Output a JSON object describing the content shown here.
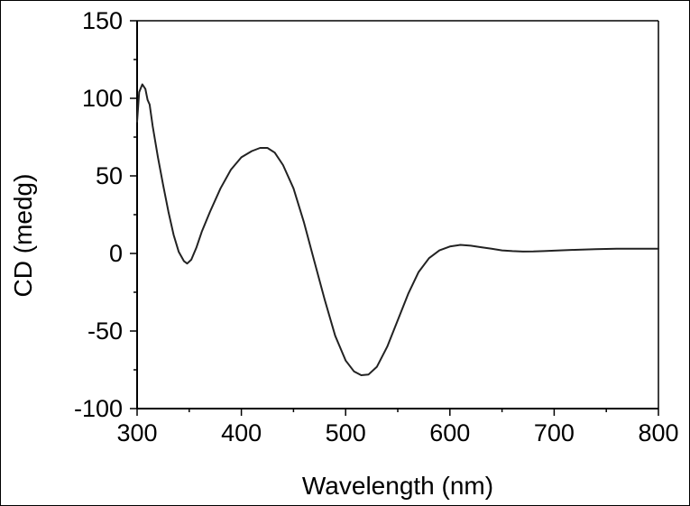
{
  "chart_data": {
    "type": "line",
    "xlabel": "Wavelength (nm)",
    "ylabel": "CD (medg)",
    "xlim": [
      300,
      800
    ],
    "ylim": [
      -100,
      150
    ],
    "xticks": [
      "300",
      "400",
      "500",
      "600",
      "700",
      "800"
    ],
    "yticks": [
      "150",
      "100",
      "50",
      "0",
      "-50",
      "-100"
    ],
    "grid": false,
    "line_color": "#222222",
    "series": [
      {
        "points": [
          [
            300,
            85
          ],
          [
            302,
            104
          ],
          [
            305,
            109
          ],
          [
            308,
            106
          ],
          [
            310,
            99
          ],
          [
            312,
            96
          ],
          [
            315,
            82
          ],
          [
            320,
            62
          ],
          [
            325,
            44
          ],
          [
            330,
            27
          ],
          [
            335,
            12
          ],
          [
            340,
            1
          ],
          [
            345,
            -5
          ],
          [
            348,
            -6.5
          ],
          [
            352,
            -4
          ],
          [
            357,
            4
          ],
          [
            362,
            14
          ],
          [
            370,
            27
          ],
          [
            380,
            42
          ],
          [
            390,
            54
          ],
          [
            400,
            62
          ],
          [
            410,
            66
          ],
          [
            418,
            68
          ],
          [
            425,
            68
          ],
          [
            432,
            65
          ],
          [
            440,
            57
          ],
          [
            450,
            42
          ],
          [
            460,
            20
          ],
          [
            470,
            -5
          ],
          [
            480,
            -30
          ],
          [
            490,
            -53
          ],
          [
            500,
            -69
          ],
          [
            508,
            -76
          ],
          [
            515,
            -78.5
          ],
          [
            522,
            -78
          ],
          [
            530,
            -73
          ],
          [
            540,
            -60
          ],
          [
            550,
            -43
          ],
          [
            560,
            -26
          ],
          [
            570,
            -12
          ],
          [
            580,
            -3
          ],
          [
            590,
            2
          ],
          [
            600,
            4.5
          ],
          [
            610,
            5.5
          ],
          [
            620,
            5
          ],
          [
            630,
            4
          ],
          [
            640,
            3
          ],
          [
            650,
            2
          ],
          [
            660,
            1.5
          ],
          [
            670,
            1.2
          ],
          [
            680,
            1.3
          ],
          [
            690,
            1.5
          ],
          [
            700,
            1.8
          ],
          [
            720,
            2.3
          ],
          [
            740,
            2.8
          ],
          [
            760,
            3.0
          ],
          [
            780,
            3.0
          ],
          [
            800,
            3.0
          ]
        ]
      }
    ]
  }
}
